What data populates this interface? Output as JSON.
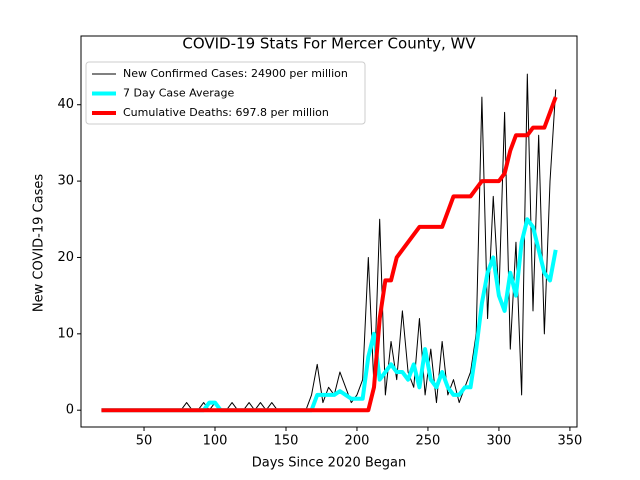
{
  "chart_data": {
    "type": "line",
    "title": "COVID-19 Stats For Mercer County, WV",
    "x_label": "Days Since 2020 Began",
    "y_label": "New COVID-19 Cases",
    "x": [
      20,
      24,
      28,
      32,
      36,
      40,
      44,
      48,
      52,
      56,
      60,
      64,
      68,
      72,
      76,
      80,
      84,
      88,
      92,
      96,
      100,
      104,
      108,
      112,
      116,
      120,
      124,
      128,
      132,
      136,
      140,
      144,
      148,
      152,
      156,
      160,
      164,
      168,
      172,
      176,
      180,
      184,
      188,
      192,
      196,
      200,
      204,
      208,
      212,
      216,
      220,
      224,
      228,
      232,
      236,
      240,
      244,
      248,
      252,
      256,
      260,
      264,
      268,
      272,
      276,
      280,
      284,
      288,
      292,
      296,
      300,
      304,
      308,
      312,
      316,
      320,
      324,
      328,
      332,
      336,
      340
    ],
    "series": [
      {
        "name": "New Confirmed Cases: 24900 per million",
        "color": "#000000",
        "width": 1,
        "values": [
          0,
          0,
          0,
          0,
          0,
          0,
          0,
          0,
          0,
          0,
          0,
          0,
          0,
          0,
          0,
          1,
          0,
          0,
          1,
          0,
          1,
          0,
          0,
          1,
          0,
          0,
          1,
          0,
          1,
          0,
          1,
          0,
          0,
          0,
          0,
          0,
          0,
          2,
          6,
          1,
          3,
          2,
          5,
          3,
          1,
          2,
          4,
          20,
          3,
          25,
          2,
          9,
          4,
          13,
          5,
          3,
          12,
          2,
          8,
          1,
          9,
          2,
          4,
          1,
          3,
          5,
          10,
          41,
          12,
          28,
          15,
          39,
          8,
          22,
          2,
          44,
          13,
          36,
          10,
          30,
          42
        ]
      },
      {
        "name": "7 Day Case Average",
        "color": "#00ffff",
        "width": 4,
        "values": [
          0,
          0,
          0,
          0,
          0,
          0,
          0,
          0,
          0,
          0,
          0,
          0,
          0,
          0,
          0,
          0,
          0,
          0,
          0,
          1,
          1,
          0,
          0,
          0,
          0,
          0,
          0,
          0,
          0,
          0,
          0,
          0,
          0,
          0,
          0,
          0,
          0,
          0,
          2,
          2,
          2,
          2,
          2.5,
          2,
          1.5,
          1.5,
          1.5,
          7,
          10,
          4,
          5,
          6,
          5,
          5,
          4,
          6,
          3,
          8,
          4,
          3,
          5,
          3,
          2,
          2,
          3,
          3,
          8,
          14,
          18,
          20,
          15,
          13,
          18,
          15,
          22,
          25,
          24,
          21,
          18,
          17,
          21
        ]
      },
      {
        "name": "Cumulative Deaths: 697.8 per million",
        "color": "#ff0000",
        "width": 4,
        "values": [
          0,
          0,
          0,
          0,
          0,
          0,
          0,
          0,
          0,
          0,
          0,
          0,
          0,
          0,
          0,
          0,
          0,
          0,
          0,
          0,
          0,
          0,
          0,
          0,
          0,
          0,
          0,
          0,
          0,
          0,
          0,
          0,
          0,
          0,
          0,
          0,
          0,
          0,
          0,
          0,
          0,
          0,
          0,
          0,
          0,
          0,
          0,
          0,
          3,
          12,
          17,
          17,
          20,
          21,
          22,
          23,
          24,
          24,
          24,
          24,
          24,
          26,
          28,
          28,
          28,
          28,
          29,
          30,
          30,
          30,
          30,
          31,
          34,
          36,
          36,
          36,
          37,
          37,
          37,
          39,
          41
        ]
      }
    ],
    "xlim": [
      5.6,
      355
    ],
    "ylim": [
      -2.2,
      49
    ],
    "xticks": [
      50,
      100,
      150,
      200,
      250,
      300,
      350
    ],
    "yticks": [
      0,
      10,
      20,
      30,
      40
    ],
    "legend": "upper left"
  }
}
